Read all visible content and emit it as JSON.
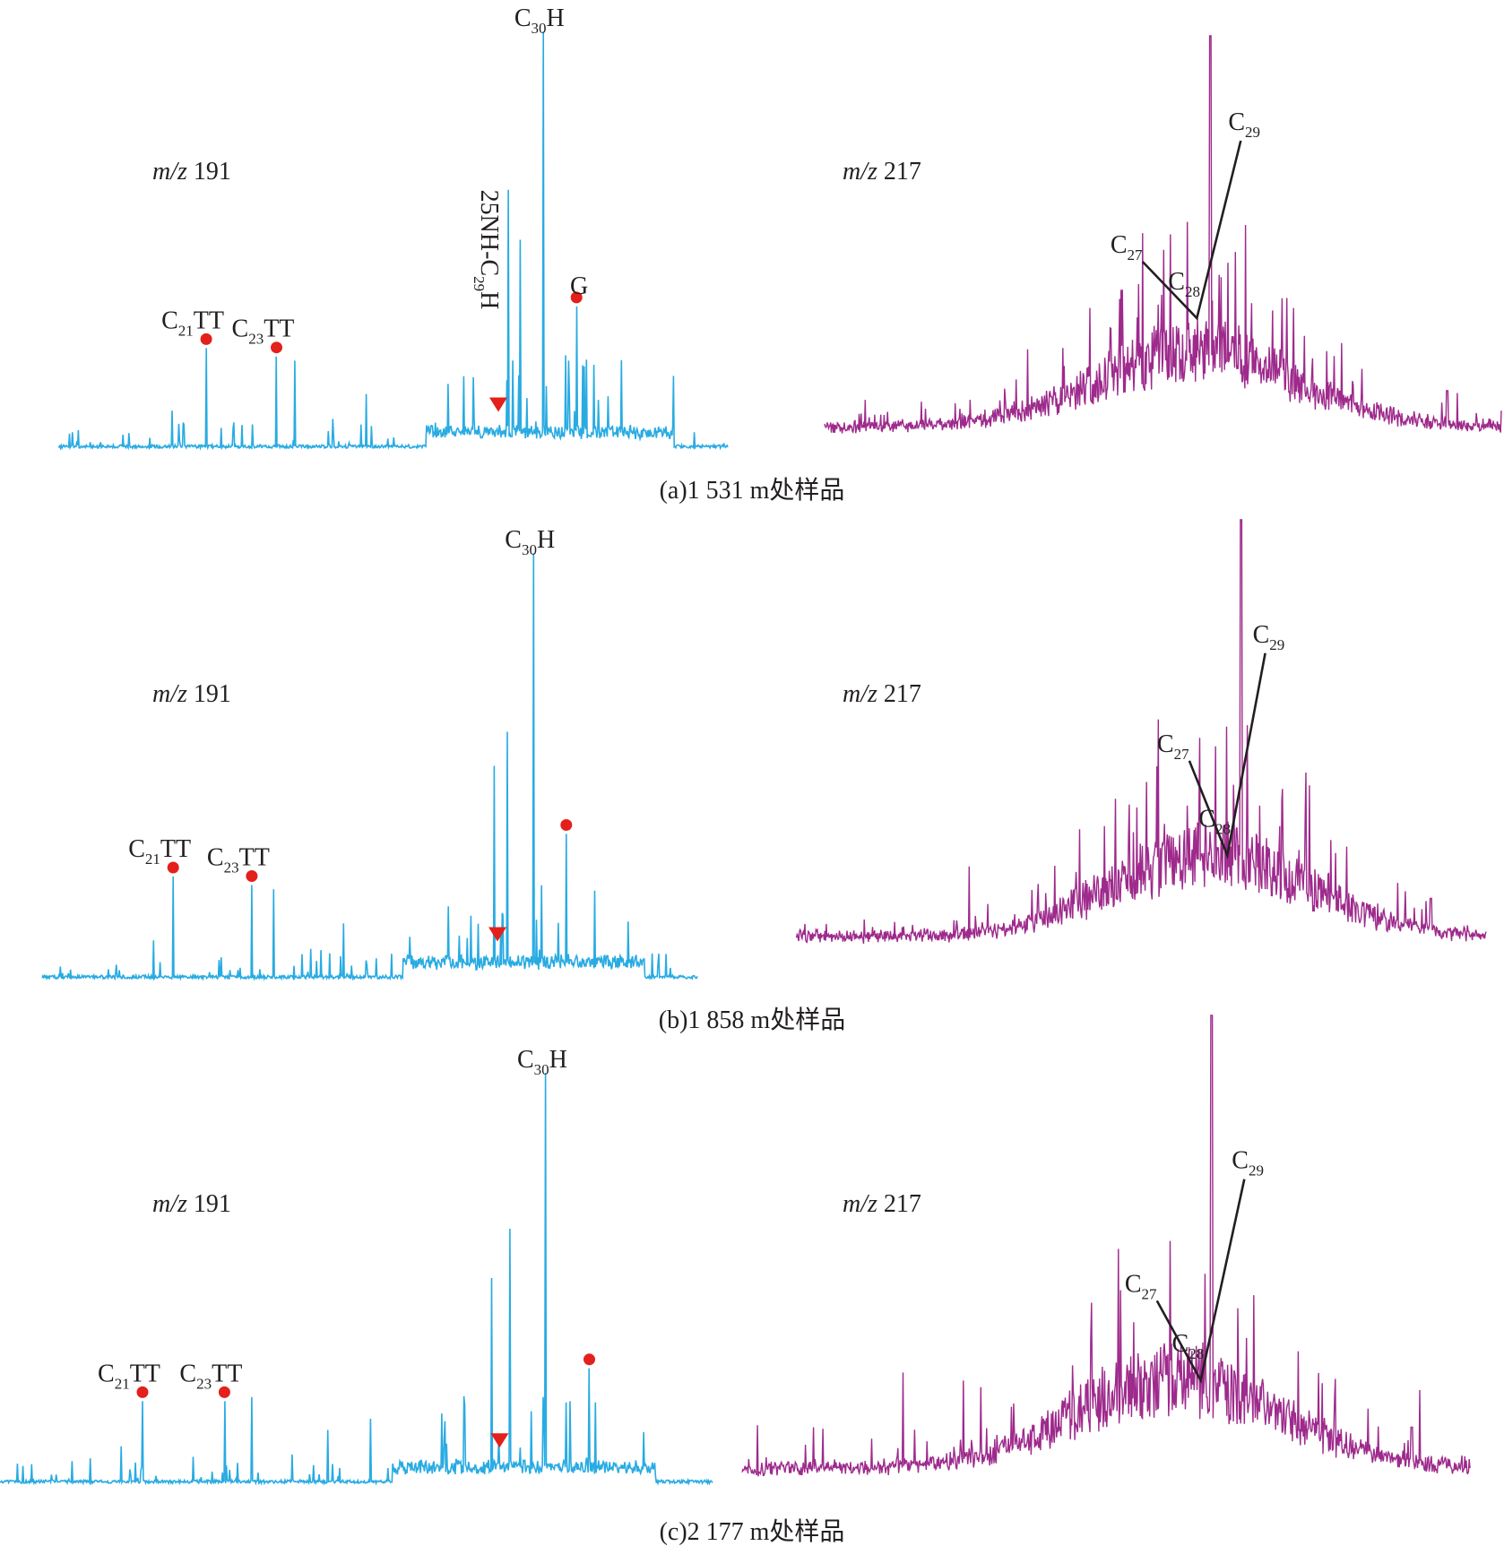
{
  "colors": {
    "m191_trace": "#29abe2",
    "m217_trace": "#9e2a8c",
    "marker_dot": "#e3201b",
    "marker_triangle": "#e3201b",
    "annotation_line": "#231f20"
  },
  "chart_data": [
    {
      "type": "line",
      "panel": "a",
      "caption": "(a)1 531 m处样品",
      "m191": {
        "mz_prefix": "m/z",
        "mz_value": "191",
        "peaks": [
          {
            "id": "C21TT",
            "main": "C",
            "sub": "21",
            "tail": "TT",
            "x": 0.221,
            "h": 0.24,
            "marker": "dot"
          },
          {
            "id": "C23TT",
            "main": "C",
            "sub": "23",
            "tail": "TT",
            "x": 0.326,
            "h": 0.22,
            "marker": "dot"
          },
          {
            "id": "25NH-C29H",
            "main": "25NH-C",
            "sub": "29",
            "tail": "H",
            "x": 0.672,
            "h": 0.62,
            "marker": "triangle"
          },
          {
            "id": "C30H",
            "main": "C",
            "sub": "30",
            "tail": "H",
            "x": 0.724,
            "h": 1.0,
            "marker": "none"
          },
          {
            "id": "G",
            "main": "G",
            "sub": "",
            "tail": "",
            "x": 0.774,
            "h": 0.34,
            "marker": "dot"
          }
        ]
      },
      "m217": {
        "mz_prefix": "m/z",
        "mz_value": "217",
        "steranes": [
          {
            "id": "C27",
            "main": "C",
            "sub": "27",
            "x": 0.47,
            "h": 0.44
          },
          {
            "id": "C28",
            "main": "C",
            "sub": "28",
            "x": 0.55,
            "h": 0.3
          },
          {
            "id": "C29",
            "main": "C",
            "sub": "29",
            "x": 0.615,
            "h": 0.74
          }
        ]
      }
    },
    {
      "type": "line",
      "panel": "b",
      "caption": "(b)1 858 m处样品",
      "m191": {
        "mz_prefix": "m/z",
        "mz_value": "191",
        "peaks": [
          {
            "id": "C21TT",
            "main": "C",
            "sub": "21",
            "tail": "TT",
            "x": 0.2,
            "h": 0.24,
            "marker": "dot"
          },
          {
            "id": "C23TT",
            "main": "C",
            "sub": "23",
            "tail": "TT",
            "x": 0.32,
            "h": 0.22,
            "marker": "dot"
          },
          {
            "id": "25NH-C29H",
            "main": "",
            "sub": "",
            "tail": "",
            "x": 0.71,
            "h": 0.58,
            "marker": "triangle"
          },
          {
            "id": "C30H",
            "main": "C",
            "sub": "30",
            "tail": "H",
            "x": 0.75,
            "h": 1.0,
            "marker": "none"
          },
          {
            "id": "G",
            "main": "",
            "sub": "",
            "tail": "",
            "x": 0.8,
            "h": 0.34,
            "marker": "dot"
          }
        ]
      },
      "m217": {
        "mz_prefix": "m/z",
        "mz_value": "217",
        "steranes": [
          {
            "id": "C27",
            "main": "C",
            "sub": "27",
            "x": 0.57,
            "h": 0.44
          },
          {
            "id": "C28",
            "main": "C",
            "sub": "28",
            "x": 0.625,
            "h": 0.22
          },
          {
            "id": "C29",
            "main": "C",
            "sub": "29",
            "x": 0.68,
            "h": 0.69
          }
        ]
      }
    },
    {
      "type": "line",
      "panel": "c",
      "caption": "(c)2 177 m处样品",
      "m191": {
        "mz_prefix": "m/z",
        "mz_value": "191",
        "peaks": [
          {
            "id": "C21TT",
            "main": "C",
            "sub": "21",
            "tail": "TT",
            "x": 0.2,
            "h": 0.2,
            "marker": "dot"
          },
          {
            "id": "C23TT",
            "main": "C",
            "sub": "23",
            "tail": "TT",
            "x": 0.315,
            "h": 0.2,
            "marker": "dot"
          },
          {
            "id": "25NH-C29H",
            "main": "",
            "sub": "",
            "tail": "",
            "x": 0.715,
            "h": 0.62,
            "marker": "triangle"
          },
          {
            "id": "C30H",
            "main": "C",
            "sub": "30",
            "tail": "H",
            "x": 0.766,
            "h": 1.0,
            "marker": "none"
          },
          {
            "id": "G",
            "main": "",
            "sub": "",
            "tail": "",
            "x": 0.827,
            "h": 0.28,
            "marker": "dot"
          }
        ]
      },
      "m217": {
        "mz_prefix": "m/z",
        "mz_value": "217",
        "steranes": [
          {
            "id": "C27",
            "main": "C",
            "sub": "27",
            "x": 0.57,
            "h": 0.39
          },
          {
            "id": "C28",
            "main": "C",
            "sub": "28",
            "x": 0.63,
            "h": 0.22
          },
          {
            "id": "C29",
            "main": "C",
            "sub": "29",
            "x": 0.69,
            "h": 0.65
          }
        ]
      }
    }
  ]
}
